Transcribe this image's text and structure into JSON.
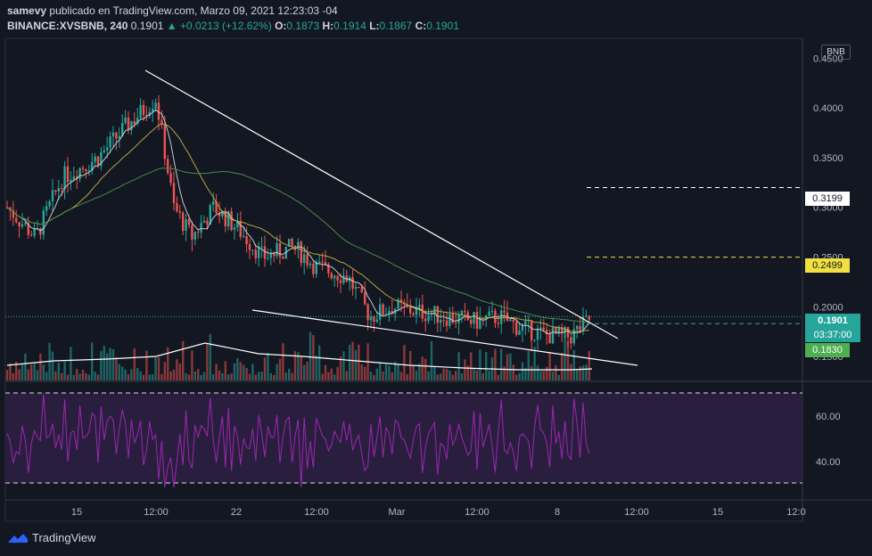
{
  "header": {
    "author": "samevy",
    "published_text": "publicado en TradingView.com, Marzo 09, 2021 12:23:03 -04",
    "symbol": "BINANCE:XVSBNB, 240",
    "last": "0.1901",
    "change": "▲ +0.0213 (+12.62%)",
    "o_label": "O:",
    "o": "0.1873",
    "h_label": "H:",
    "h": "0.1914",
    "l_label": "L:",
    "l": "0.1867",
    "c_label": "C:",
    "c": "0.1901"
  },
  "currency_badge": "BNB",
  "price_tag": {
    "price": "0.1901",
    "countdown": "03:37:00"
  },
  "level_tags": {
    "white": "0.3199",
    "yellow": "0.2499",
    "green": "0.1830"
  },
  "colors": {
    "bg": "#131722",
    "up": "#26a69a",
    "down": "#ef5350",
    "ma_fast": "#c9c9c9",
    "ma_mid": "#b5a642",
    "ma_slow": "#4a8a4a",
    "rsi": "#9c27b0",
    "yellow": "#f0e040",
    "green_tag": "#4caf50"
  },
  "footer": {
    "brand": "TradingView"
  },
  "chart_data": {
    "type": "line",
    "title": "BINANCE:XVSBNB, 240",
    "y_ticks": [
      "0.4500",
      "0.4000",
      "0.3500",
      "0.3000",
      "0.2500",
      "0.2000",
      "0.1500"
    ],
    "x_ticks": [
      "15",
      "12:00",
      "22",
      "12:00",
      "Mar",
      "12:00",
      "8",
      "12:00",
      "15",
      "12:0"
    ],
    "rsi_ticks": [
      "60.00",
      "40.00"
    ],
    "series": [
      {
        "name": "",
        "x": [
          "15",
          "12:00",
          "22",
          "12:00",
          "Mar",
          "12:00",
          "8"
        ],
        "values": [
          0.31,
          0.4,
          0.29,
          0.26,
          0.22,
          0.19,
          0.17
        ]
      }
    ],
    "ylim": [
      0.125,
      0.47
    ],
    "levels": [
      0.3199,
      0.2499,
      0.183
    ],
    "last_price": 0.1901
  }
}
